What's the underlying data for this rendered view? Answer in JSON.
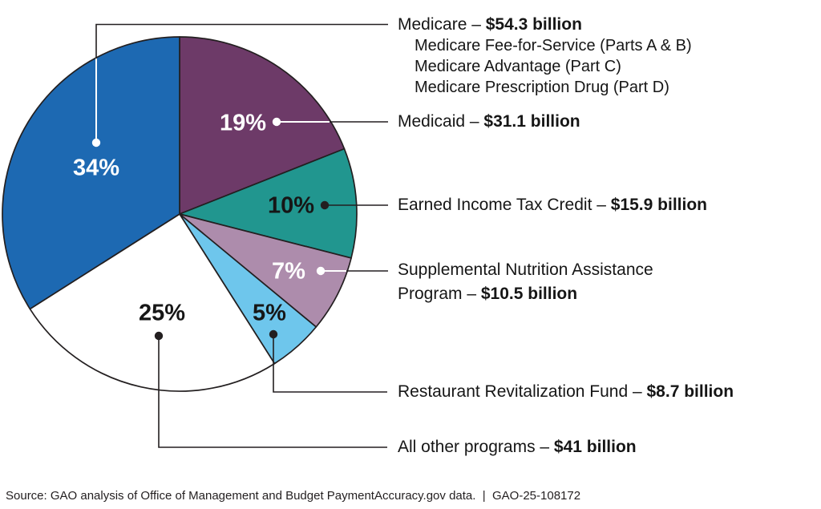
{
  "figure": {
    "source_note": "Source: GAO analysis of Office of Management and Budget PaymentAccuracy.gov data.  |  GAO-25-108172"
  },
  "chart_data": {
    "type": "pie",
    "title": "",
    "start_angle": "12 o'clock",
    "direction": "clockwise",
    "outline_color": "#231F20",
    "slices": [
      {
        "id": "medicaid",
        "label": "Medicaid",
        "pct": 19,
        "pct_label": "19%",
        "amount_usd_billion": 31.1,
        "amount_label": "$31.1 billion",
        "color": "#6D3A68",
        "pct_label_color": "#FFFFFF"
      },
      {
        "id": "eitc",
        "label": "Earned Income Tax Credit",
        "pct": 10,
        "pct_label": "10%",
        "amount_usd_billion": 15.9,
        "amount_label": "$15.9 billion",
        "color": "#21968F",
        "pct_label_color": "#161616"
      },
      {
        "id": "snap",
        "label": "Supplemental Nutrition Assistance Program",
        "pct": 7,
        "pct_label": "7%",
        "amount_usd_billion": 10.5,
        "amount_label": "$10.5 billion",
        "color": "#AD8CAC",
        "pct_label_color": "#FFFFFF"
      },
      {
        "id": "rrf",
        "label": "Restaurant Revitalization Fund",
        "pct": 5,
        "pct_label": "5%",
        "amount_usd_billion": 8.7,
        "amount_label": "$8.7 billion",
        "color": "#6EC6EC",
        "pct_label_color": "#161616"
      },
      {
        "id": "other",
        "label": "All other programs",
        "pct": 25,
        "pct_label": "25%",
        "amount_usd_billion": 41,
        "amount_label": "$41 billion",
        "color": "#FFFFFF",
        "pct_label_color": "#161616"
      },
      {
        "id": "medicare",
        "label": "Medicare",
        "pct": 34,
        "pct_label": "34%",
        "amount_usd_billion": 54.3,
        "amount_label": "$54.3 billion",
        "color": "#1D69B2",
        "pct_label_color": "#FFFFFF"
      }
    ]
  },
  "labels": {
    "medicare": {
      "name": "Medicare – ",
      "amount": "$54.3 billion",
      "sub": [
        "Medicare Fee-for-Service (Parts A & B)",
        "Medicare Advantage (Part C)",
        "Medicare Prescription Drug (Part D)"
      ]
    },
    "medicaid": {
      "name": "Medicaid – ",
      "amount": "$31.1 billion"
    },
    "eitc": {
      "name": "Earned Income Tax Credit – ",
      "amount": "$15.9 billion"
    },
    "snap": {
      "name": "Supplemental Nutrition Assistance Program – ",
      "amount": "$10.5 billion"
    },
    "rrf": {
      "name": "Restaurant Revitalization Fund – ",
      "amount": "$8.7 billion"
    },
    "other": {
      "name": "All other programs – ",
      "amount": "$41 billion"
    }
  }
}
